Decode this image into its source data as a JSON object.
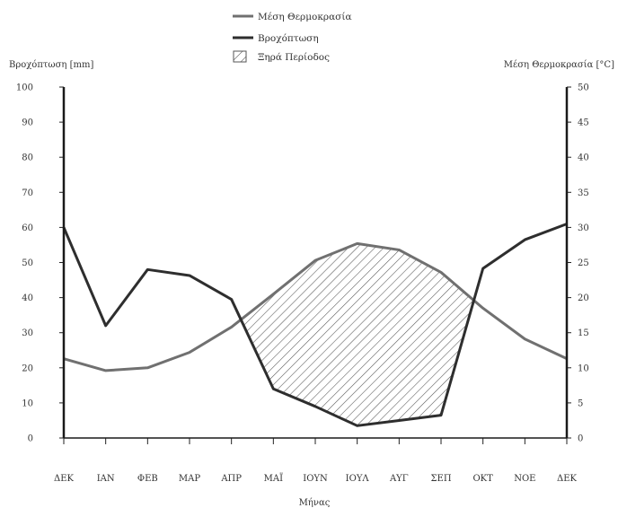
{
  "chart_data": {
    "type": "line",
    "title": "",
    "categories": [
      "ΔΕΚ",
      "ΙΑΝ",
      "ΦΕΒ",
      "ΜΑΡ",
      "ΑΠΡ",
      "ΜΑΪ",
      "ΙΟΥΝ",
      "ΙΟΥΛ",
      "ΑΥΓ",
      "ΣΕΠ",
      "ΟΚΤ",
      "ΝΟΕ",
      "ΔΕΚ"
    ],
    "xlabel": "Μήνας",
    "ylabel_left": "Βροχόπτωση [mm]",
    "ylabel_right": "Μέση Θερμοκρασία [°C]",
    "ylim_left": [
      0,
      100
    ],
    "ylim_right": [
      0,
      50
    ],
    "yticks_left": [
      "0",
      "10",
      "20",
      "30",
      "40",
      "50",
      "60",
      "70",
      "80",
      "90",
      "100"
    ],
    "yticks_right": [
      "0",
      "5",
      "10",
      "15",
      "20",
      "25",
      "30",
      "35",
      "40",
      "45",
      "50"
    ],
    "grid": false,
    "legend_position": "top-center",
    "series": [
      {
        "name": "Μέση Θερμοκρασία",
        "axis": "right",
        "color": "#707070",
        "values": [
          11.3,
          9.6,
          10.0,
          12.2,
          15.8,
          20.5,
          25.3,
          27.7,
          26.8,
          23.6,
          18.5,
          14.1,
          11.3
        ]
      },
      {
        "name": "Βροχόπτωση",
        "axis": "left",
        "color": "#2e2e2e",
        "values": [
          60.0,
          32.0,
          48.0,
          46.3,
          39.5,
          14.0,
          9.0,
          3.5,
          5.0,
          6.5,
          48.3,
          56.5,
          61.0
        ]
      }
    ],
    "dry_period_label": "Ξηρά Περίοδος",
    "dry_period_range": [
      "ΑΠΡ",
      "ΣΕΠ"
    ]
  }
}
